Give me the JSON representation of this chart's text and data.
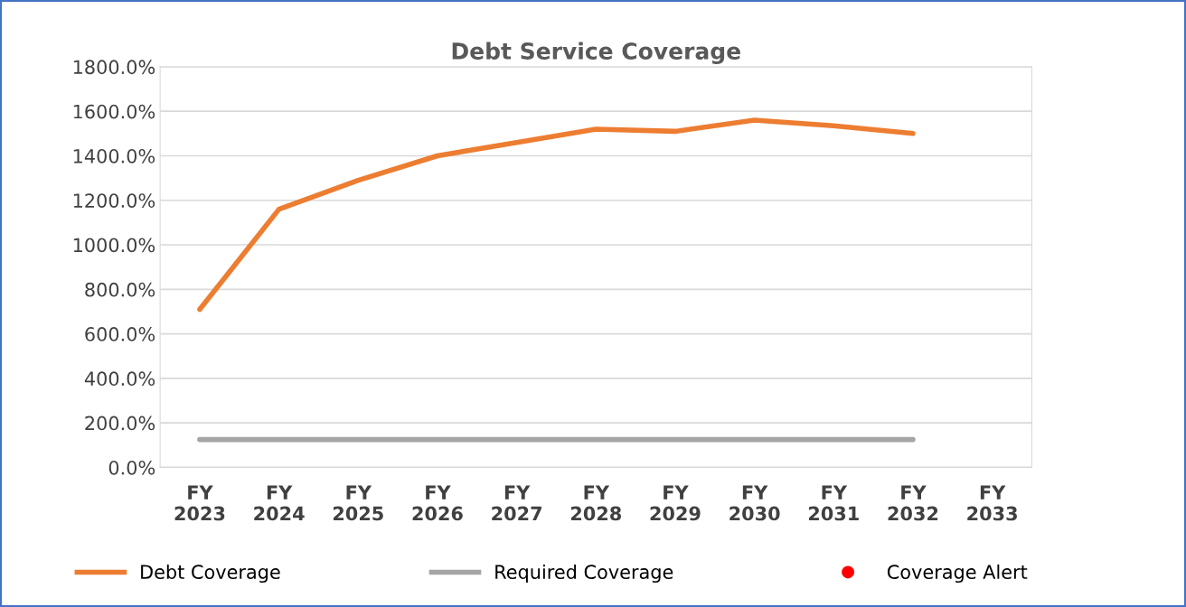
{
  "chart_data": {
    "type": "line",
    "title": "Debt Service Coverage",
    "categories": [
      "FY\n2023",
      "FY\n2024",
      "FY\n2025",
      "FY\n2026",
      "FY\n2027",
      "FY\n2028",
      "FY\n2029",
      "FY\n2030",
      "FY\n2031",
      "FY\n2032",
      "FY\n2033"
    ],
    "series": [
      {
        "name": "Debt Coverage",
        "color": "#ed7d31",
        "values": [
          710,
          1160,
          1290,
          1400,
          1460,
          1520,
          1510,
          1560,
          1535,
          1500,
          null
        ]
      },
      {
        "name": "Required Coverage",
        "color": "#a5a5a5",
        "values": [
          125,
          125,
          125,
          125,
          125,
          125,
          125,
          125,
          125,
          125,
          null
        ]
      },
      {
        "name": "Coverage Alert",
        "type": "scatter",
        "color": "#ff0000",
        "values": [
          null,
          null,
          null,
          null,
          null,
          null,
          null,
          null,
          null,
          null,
          null
        ]
      }
    ],
    "ylim": [
      0,
      1800
    ],
    "yticks": [
      {
        "value": 0,
        "label": "0.0%"
      },
      {
        "value": 200,
        "label": "200.0%"
      },
      {
        "value": 400,
        "label": "400.0%"
      },
      {
        "value": 600,
        "label": "600.0%"
      },
      {
        "value": 800,
        "label": "800.0%"
      },
      {
        "value": 1000,
        "label": "1000.0%"
      },
      {
        "value": 1200,
        "label": "1200.0%"
      },
      {
        "value": 1400,
        "label": "1400.0%"
      },
      {
        "value": 1600,
        "label": "1600.0%"
      },
      {
        "value": 1800,
        "label": "1800.0%"
      }
    ],
    "grid": "y",
    "legend": "bottom",
    "marker": "none"
  }
}
